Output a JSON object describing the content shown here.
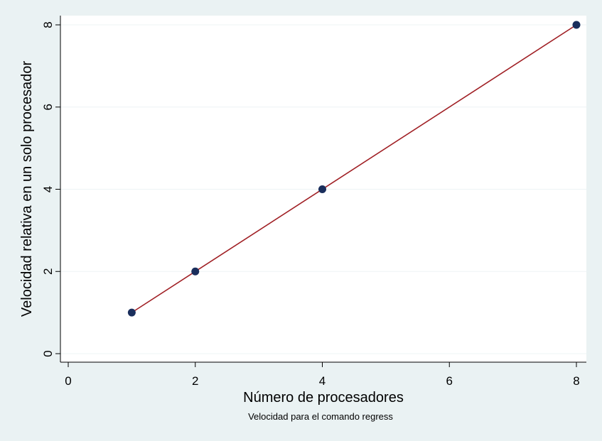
{
  "chart_data": {
    "type": "scatter",
    "title": "",
    "xlabel": "Número de procesadores",
    "ylabel": "Velocidad relativa en un solo procesador",
    "caption": "Velocidad para el comando regress",
    "xlim": [
      0,
      8
    ],
    "ylim": [
      0,
      8
    ],
    "xticks": [
      "0",
      "2",
      "4",
      "6",
      "8"
    ],
    "yticks": [
      "0",
      "2",
      "4",
      "6",
      "8"
    ],
    "grid": "horizontal",
    "legend": "none",
    "series": [
      {
        "kind": "points",
        "x": [
          1,
          2,
          4,
          8
        ],
        "y": [
          1,
          2,
          4,
          8
        ],
        "color": "#1a2e5c"
      },
      {
        "kind": "line",
        "x": [
          1,
          8
        ],
        "y": [
          1,
          8
        ],
        "color": "#a01f24"
      }
    ]
  },
  "colors": {
    "background": "#eaf2f3",
    "plot_area": "#ffffff",
    "marker": "#1a2e5c",
    "line": "#a01f24"
  }
}
